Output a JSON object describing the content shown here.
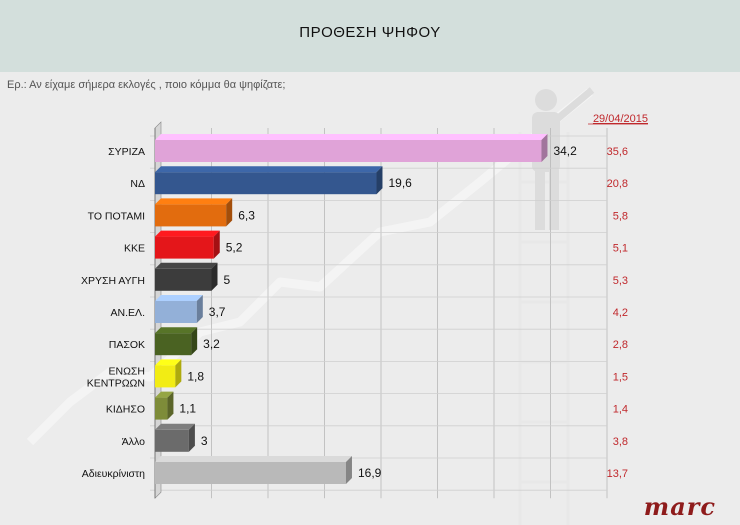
{
  "header": {
    "title": "ΠΡΟΘΕΣΗ ΨΗΦΟΥ"
  },
  "question": "Ερ.: Αν είχαμε σήμερα εκλογές , ποιο κόμμα θα ψηφίζατε;",
  "brand": {
    "logo_text": "marc"
  },
  "chart_data": {
    "type": "bar",
    "orientation": "horizontal",
    "categories": [
      "ΣΥΡΙΖΑ",
      "ΝΔ",
      "ΤΟ ΠΟΤΑΜΙ",
      "ΚΚΕ",
      "ΧΡΥΣΗ ΑΥΓΗ",
      "ΑΝ.ΕΛ.",
      "ΠΑΣΟΚ",
      "ΕΝΩΣΗ ΚΕΝΤΡΩΩΝ",
      "ΚΙΔΗΣΟ",
      "Άλλο",
      "Αδιευκρίνιστη"
    ],
    "category_lines": [
      [
        "ΣΥΡΙΖΑ"
      ],
      [
        "ΝΔ"
      ],
      [
        "ΤΟ ΠΟΤΑΜΙ"
      ],
      [
        "ΚΚΕ"
      ],
      [
        "ΧΡΥΣΗ ΑΥΓΗ"
      ],
      [
        "ΑΝ.ΕΛ."
      ],
      [
        "ΠΑΣΟΚ"
      ],
      [
        "ΕΝΩΣΗ",
        "ΚΕΝΤΡΩΩΝ"
      ],
      [
        "ΚΙΔΗΣΟ"
      ],
      [
        "Άλλο"
      ],
      [
        "Αδιευκρίνιστη"
      ]
    ],
    "values": [
      34.2,
      19.6,
      6.3,
      5.2,
      5,
      3.7,
      3.2,
      1.8,
      1.1,
      3,
      16.9
    ],
    "value_labels": [
      "34,2",
      "19,6",
      "6,3",
      "5,2",
      "5",
      "3,7",
      "3,2",
      "1,8",
      "1,1",
      "3",
      "16,9"
    ],
    "colors": [
      "#e0a3d8",
      "#34578f",
      "#e26c0e",
      "#e4161a",
      "#3c3c3c",
      "#93b0d8",
      "#4a6222",
      "#f2ec14",
      "#7e8c39",
      "#6b6b6b",
      "#b9b9b9"
    ],
    "comparison": {
      "label": "29/04/2015",
      "values": [
        35.6,
        20.8,
        5.8,
        5.1,
        5.3,
        4.2,
        2.8,
        1.5,
        1.4,
        3.8,
        13.7
      ],
      "value_labels": [
        "35,6",
        "20,8",
        "5,8",
        "5,1",
        "5,3",
        "4,2",
        "2,8",
        "1,5",
        "1,4",
        "3,8",
        "13,7"
      ],
      "color": "#c0282c"
    },
    "xlim": [
      0,
      40
    ],
    "grid": true,
    "style": "3d-bars"
  }
}
